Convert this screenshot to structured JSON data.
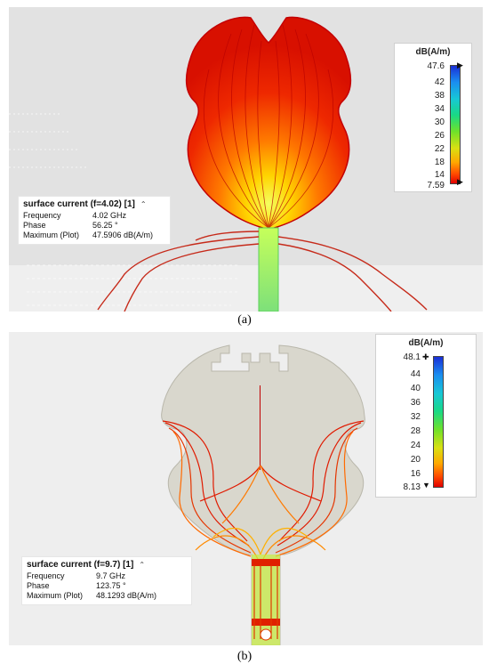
{
  "panels": [
    {
      "caption": "(a)",
      "legend": {
        "unit": "dB(A/m)",
        "max": "47.6",
        "ticks": [
          "42",
          "38",
          "34",
          "30",
          "26",
          "22",
          "18",
          "14"
        ],
        "min": "7.59"
      },
      "info": {
        "title": "surface current (f=4.02) [1]",
        "rows": [
          {
            "label": "Frequency",
            "value": "4.02 GHz"
          },
          {
            "label": "Phase",
            "value": "56.25 °"
          },
          {
            "label": "Maximum (Plot)",
            "value": "47.5906 dB(A/m)"
          }
        ]
      }
    },
    {
      "caption": "(b)",
      "legend": {
        "unit": "dB(A/m)",
        "max": "48.1",
        "ticks": [
          "44",
          "40",
          "36",
          "32",
          "28",
          "24",
          "20",
          "16"
        ],
        "min": "8.13"
      },
      "info": {
        "title": "surface current (f=9.7) [1]",
        "rows": [
          {
            "label": "Frequency",
            "value": "9.7 GHz"
          },
          {
            "label": "Phase",
            "value": "123.75 °"
          },
          {
            "label": "Maximum (Plot)",
            "value": "48.1293 dB(A/m)"
          }
        ]
      }
    }
  ],
  "colors": {
    "background_a": "#e2e2e2",
    "background_b": "#eeeeee",
    "antenna_fill": "#d8d6cc",
    "current_hot": "#e21a00",
    "current_warm": "#ff8a00",
    "current_cool": "#9be000"
  }
}
